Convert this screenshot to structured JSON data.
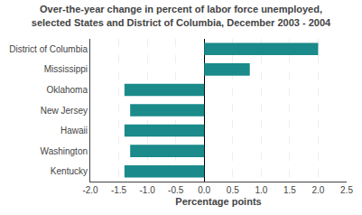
{
  "chart_data": {
    "type": "bar",
    "orientation": "horizontal",
    "title": "Over-the-year change in percent of labor force unemployed,\nselected States and District of Columbia, December 2003 - 2004",
    "xlabel": "Percentage points",
    "categories": [
      "Kentucky",
      "Washington",
      "Hawaii",
      "New Jersey",
      "Oklahoma",
      "Mississippi",
      "District of Columbia"
    ],
    "values": [
      -1.4,
      -1.3,
      -1.4,
      -1.3,
      -1.4,
      0.8,
      2.0
    ],
    "color": "#1a8a8a",
    "xlim": [
      -2.0,
      2.5
    ],
    "xticks": [
      {
        "value": -2.0,
        "label": "-2.0"
      },
      -1.5,
      {
        "value": -1.0,
        "label": "-1.0"
      },
      -0.5,
      {
        "value": 0.0,
        "label": "0.0"
      },
      0.5,
      {
        "value": 1.0,
        "label": "1.0"
      },
      1.5,
      {
        "value": 2.0,
        "label": "2.0"
      },
      2.5
    ],
    "grid": true
  }
}
